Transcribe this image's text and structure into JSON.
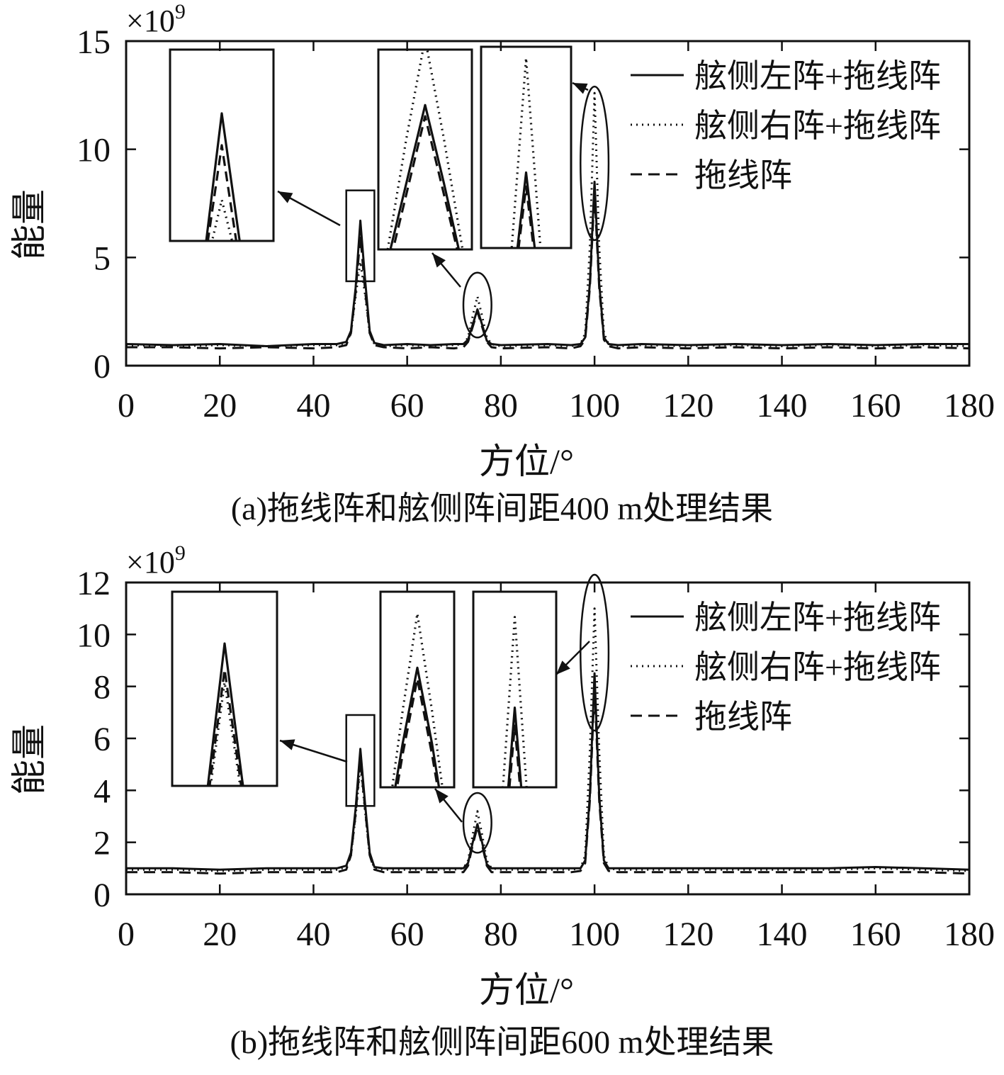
{
  "figure": {
    "captions": [
      "(a)拖线阵和舷侧阵间距400 m处理结果",
      "(b)拖线阵和舷侧阵间距600 m处理结果"
    ]
  },
  "chart_data": [
    {
      "type": "line",
      "panel": "a",
      "caption": "(a)拖线阵和舷侧阵间距400 m处理结果",
      "xlabel": "方位/°",
      "ylabel": "能量",
      "y_multiplier": "×10^9",
      "xlim": [
        0,
        180
      ],
      "ylim": [
        0,
        15
      ],
      "xticks": [
        0,
        20,
        40,
        60,
        80,
        100,
        120,
        140,
        160,
        180
      ],
      "yticks": [
        0,
        5,
        10,
        15
      ],
      "grid": false,
      "legend": {
        "position": "top-right",
        "entries": [
          "舷侧左阵+拖线阵",
          "舷侧右阵+拖线阵",
          "拖线阵"
        ]
      },
      "series": [
        {
          "name": "舷侧左阵+拖线阵",
          "style": "solid",
          "x": [
            0,
            10,
            20,
            30,
            40,
            45,
            47,
            48,
            49,
            50,
            51,
            52,
            53,
            55,
            60,
            65,
            70,
            72,
            73,
            74,
            75,
            76,
            77,
            78,
            80,
            90,
            95,
            97,
            98,
            99,
            100,
            101,
            102,
            103,
            105,
            110,
            120,
            130,
            140,
            150,
            160,
            170,
            180
          ],
          "y": [
            1.0,
            0.95,
            1.0,
            0.9,
            1.0,
            1.0,
            1.1,
            1.6,
            3.6,
            6.7,
            4.0,
            1.6,
            1.05,
            0.95,
            1.0,
            0.95,
            1.0,
            1.0,
            1.2,
            1.9,
            2.6,
            1.9,
            1.15,
            1.0,
            0.95,
            1.0,
            0.95,
            1.0,
            1.3,
            3.8,
            8.5,
            3.8,
            1.3,
            1.0,
            0.95,
            1.0,
            0.95,
            1.0,
            0.95,
            1.0,
            0.95,
            1.0,
            1.0
          ]
        },
        {
          "name": "舷侧右阵+拖线阵",
          "style": "dotted",
          "x": [
            0,
            10,
            20,
            30,
            40,
            45,
            47,
            48,
            49,
            50,
            51,
            52,
            53,
            55,
            60,
            65,
            70,
            72,
            73,
            74,
            75,
            76,
            77,
            78,
            80,
            90,
            95,
            97,
            98,
            99,
            100,
            101,
            102,
            103,
            105,
            110,
            120,
            130,
            140,
            150,
            160,
            170,
            180
          ],
          "y": [
            0.95,
            0.9,
            0.95,
            0.9,
            0.95,
            0.95,
            1.05,
            1.5,
            3.2,
            4.8,
            3.3,
            1.5,
            1.0,
            0.9,
            0.95,
            0.9,
            0.95,
            1.0,
            1.3,
            2.3,
            3.2,
            2.3,
            1.3,
            1.0,
            0.9,
            0.95,
            0.9,
            1.0,
            1.5,
            5.5,
            12.6,
            5.5,
            1.5,
            1.0,
            0.9,
            0.95,
            0.9,
            0.95,
            0.9,
            0.95,
            0.9,
            0.95,
            0.9
          ]
        },
        {
          "name": "拖线阵",
          "style": "dashed",
          "x": [
            0,
            10,
            20,
            30,
            40,
            45,
            47,
            48,
            49,
            50,
            51,
            52,
            53,
            55,
            60,
            65,
            70,
            72,
            73,
            74,
            75,
            76,
            77,
            78,
            80,
            90,
            95,
            97,
            98,
            99,
            100,
            101,
            102,
            103,
            105,
            110,
            120,
            130,
            140,
            150,
            160,
            170,
            180
          ],
          "y": [
            0.85,
            0.85,
            0.8,
            0.85,
            0.8,
            0.85,
            0.95,
            1.5,
            3.4,
            6.0,
            3.5,
            1.5,
            0.95,
            0.85,
            0.8,
            0.85,
            0.8,
            0.85,
            1.1,
            1.8,
            2.5,
            1.8,
            1.1,
            0.85,
            0.8,
            0.85,
            0.8,
            0.9,
            1.2,
            3.6,
            8.0,
            3.6,
            1.2,
            0.9,
            0.8,
            0.85,
            0.8,
            0.85,
            0.8,
            0.85,
            0.8,
            0.85,
            0.8
          ]
        }
      ],
      "annotations": [
        {
          "shape": "rect",
          "target_x": [
            47,
            53
          ],
          "target_y": [
            3.9,
            8.1
          ]
        },
        {
          "shape": "ellipse",
          "target_x": [
            72,
            78
          ],
          "target_y": [
            1.3,
            4.3
          ]
        },
        {
          "shape": "ellipse",
          "target_x": [
            97,
            103
          ],
          "target_y": [
            5.8,
            12.9
          ]
        }
      ]
    },
    {
      "type": "line",
      "panel": "b",
      "caption": "(b)拖线阵和舷侧阵间距600 m处理结果",
      "xlabel": "方位/°",
      "ylabel": "能量",
      "y_multiplier": "×10^9",
      "xlim": [
        0,
        180
      ],
      "ylim": [
        0,
        12
      ],
      "xticks": [
        0,
        20,
        40,
        60,
        80,
        100,
        120,
        140,
        160,
        180
      ],
      "yticks": [
        0,
        2,
        4,
        6,
        8,
        10,
        12
      ],
      "grid": false,
      "legend": {
        "position": "top-right",
        "entries": [
          "舷侧左阵+拖线阵",
          "舷侧右阵+拖线阵",
          "拖线阵"
        ]
      },
      "series": [
        {
          "name": "舷侧左阵+拖线阵",
          "style": "solid",
          "x": [
            0,
            10,
            20,
            30,
            40,
            45,
            47,
            48,
            49,
            50,
            51,
            52,
            53,
            55,
            60,
            65,
            70,
            72,
            73,
            74,
            75,
            76,
            77,
            78,
            80,
            90,
            95,
            97,
            98,
            99,
            100,
            101,
            102,
            103,
            105,
            110,
            120,
            130,
            140,
            150,
            160,
            170,
            180
          ],
          "y": [
            1.0,
            1.0,
            0.95,
            1.0,
            1.0,
            1.0,
            1.1,
            1.6,
            3.3,
            5.6,
            3.5,
            1.6,
            1.05,
            1.0,
            1.0,
            1.0,
            1.0,
            1.0,
            1.2,
            2.0,
            2.7,
            2.0,
            1.15,
            1.0,
            1.0,
            1.0,
            1.0,
            1.0,
            1.3,
            3.8,
            8.5,
            3.8,
            1.3,
            1.0,
            1.0,
            1.0,
            1.0,
            1.0,
            1.0,
            1.0,
            1.05,
            1.0,
            0.95
          ]
        },
        {
          "name": "舷侧右阵+拖线阵",
          "style": "dotted",
          "x": [
            0,
            10,
            20,
            30,
            40,
            45,
            47,
            48,
            49,
            50,
            51,
            52,
            53,
            55,
            60,
            65,
            70,
            72,
            73,
            74,
            75,
            76,
            77,
            78,
            80,
            90,
            95,
            97,
            98,
            99,
            100,
            101,
            102,
            103,
            105,
            110,
            120,
            130,
            140,
            150,
            160,
            170,
            180
          ],
          "y": [
            0.95,
            0.95,
            0.9,
            0.95,
            0.95,
            0.95,
            1.05,
            1.5,
            3.0,
            5.0,
            3.2,
            1.5,
            1.0,
            0.95,
            0.95,
            0.95,
            0.95,
            1.0,
            1.3,
            2.3,
            3.2,
            2.3,
            1.3,
            1.0,
            0.95,
            0.95,
            0.95,
            1.0,
            1.5,
            5.5,
            11.0,
            5.5,
            1.5,
            1.0,
            0.95,
            0.95,
            0.95,
            0.95,
            0.95,
            0.95,
            1.0,
            0.95,
            0.9
          ]
        },
        {
          "name": "拖线阵",
          "style": "dashed",
          "x": [
            0,
            10,
            20,
            30,
            40,
            45,
            47,
            48,
            49,
            50,
            51,
            52,
            53,
            55,
            60,
            65,
            70,
            72,
            73,
            74,
            75,
            76,
            77,
            78,
            80,
            90,
            95,
            97,
            98,
            99,
            100,
            101,
            102,
            103,
            105,
            110,
            120,
            130,
            140,
            150,
            160,
            170,
            180
          ],
          "y": [
            0.85,
            0.85,
            0.8,
            0.85,
            0.85,
            0.85,
            0.95,
            1.5,
            3.1,
            5.2,
            3.3,
            1.5,
            0.95,
            0.85,
            0.85,
            0.85,
            0.85,
            0.85,
            1.1,
            1.9,
            2.6,
            1.9,
            1.1,
            0.85,
            0.85,
            0.85,
            0.85,
            0.9,
            1.2,
            3.6,
            8.0,
            3.6,
            1.2,
            0.9,
            0.85,
            0.85,
            0.85,
            0.85,
            0.85,
            0.85,
            0.85,
            0.85,
            0.8
          ]
        }
      ],
      "annotations": [
        {
          "shape": "rect",
          "target_x": [
            47,
            53
          ],
          "target_y": [
            3.4,
            6.9
          ]
        },
        {
          "shape": "ellipse",
          "target_x": [
            72,
            78
          ],
          "target_y": [
            1.6,
            3.9
          ]
        },
        {
          "shape": "ellipse",
          "target_x": [
            97,
            103
          ],
          "target_y": [
            6.3,
            12.3
          ]
        }
      ]
    }
  ]
}
